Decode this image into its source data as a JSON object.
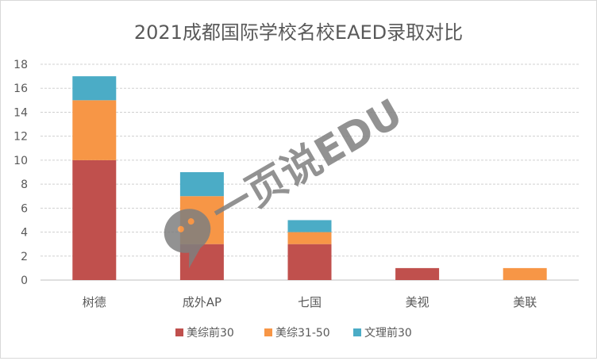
{
  "chart_data": {
    "type": "bar",
    "stacked": true,
    "title": "2021成都国际学校名校EAED录取对比",
    "categories": [
      "树德",
      "成外AP",
      "七国",
      "美视",
      "美联"
    ],
    "series": [
      {
        "name": "美综前30",
        "values": [
          10,
          3,
          3,
          1,
          0
        ],
        "color": "#c0504d"
      },
      {
        "name": "美综31-50",
        "values": [
          5,
          4,
          1,
          0,
          1
        ],
        "color": "#f79646"
      },
      {
        "name": "文理前30",
        "values": [
          2,
          2,
          1,
          0,
          0
        ],
        "color": "#4bacc6"
      }
    ],
    "ylim": [
      0,
      18
    ],
    "yticks": [
      0,
      2,
      4,
      6,
      8,
      10,
      12,
      14,
      16,
      18
    ],
    "grid": true,
    "legend": "bottom",
    "watermark": "一页说EDU"
  }
}
